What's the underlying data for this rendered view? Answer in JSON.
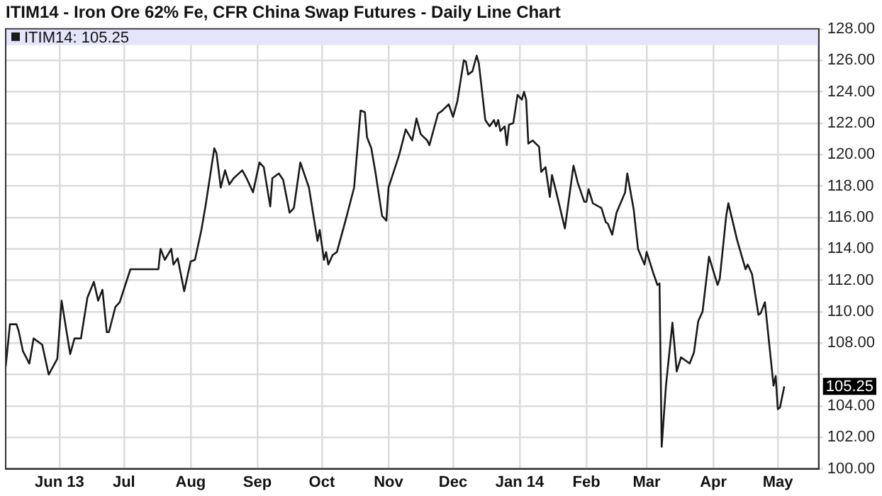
{
  "chart_data": {
    "type": "line",
    "title": "ITIM14 - Iron Ore 62% Fe, CFR China Swap Futures - Daily Line Chart",
    "x": [
      "2013-05-07",
      "2013-05-09",
      "2013-05-12",
      "2013-05-13",
      "2013-05-15",
      "2013-05-18",
      "2013-05-20",
      "2013-05-24",
      "2013-05-27",
      "2013-05-31",
      "2013-06-02",
      "2013-06-06",
      "2013-06-08",
      "2013-06-11",
      "2013-06-14",
      "2013-06-17",
      "2013-06-19",
      "2013-06-21",
      "2013-06-23",
      "2013-06-24",
      "2013-06-27",
      "2013-06-29",
      "2013-07-04",
      "2013-07-17",
      "2013-07-18",
      "2013-07-20",
      "2013-07-23",
      "2013-07-24",
      "2013-07-26",
      "2013-07-29",
      "2013-08-01",
      "2013-08-03",
      "2013-08-06",
      "2013-08-08",
      "2013-08-12",
      "2013-08-13",
      "2013-08-15",
      "2013-08-17",
      "2013-08-19",
      "2013-08-21",
      "2013-08-25",
      "2013-08-27",
      "2013-08-30",
      "2013-09-02",
      "2013-09-04",
      "2013-09-07",
      "2013-09-08",
      "2013-09-11",
      "2013-09-13",
      "2013-09-16",
      "2013-09-18",
      "2013-09-21",
      "2013-09-25",
      "2013-09-29",
      "2013-09-30",
      "2013-10-02",
      "2013-10-03",
      "2013-10-04",
      "2013-10-06",
      "2013-10-08",
      "2013-10-12",
      "2013-10-16",
      "2013-10-19",
      "2013-10-21",
      "2013-10-22",
      "2013-10-24",
      "2013-10-26",
      "2013-10-29",
      "2013-10-31",
      "2013-11-01",
      "2013-11-06",
      "2013-11-09",
      "2013-11-12",
      "2013-11-14",
      "2013-11-16",
      "2013-11-19",
      "2013-11-20",
      "2013-11-24",
      "2013-11-26",
      "2013-11-29",
      "2013-12-01",
      "2013-12-03",
      "2013-12-06",
      "2013-12-07",
      "2013-12-08",
      "2013-12-10",
      "2013-12-12",
      "2013-12-13",
      "2013-12-16",
      "2013-12-18",
      "2013-12-20",
      "2013-12-21",
      "2013-12-22",
      "2013-12-23",
      "2013-12-25",
      "2013-12-26",
      "2013-12-27",
      "2013-12-29",
      "2013-12-31",
      "2014-01-02",
      "2014-01-03",
      "2014-01-04",
      "2014-01-05",
      "2014-01-07",
      "2014-01-10",
      "2014-01-11",
      "2014-01-13",
      "2014-01-15",
      "2014-01-16",
      "2014-01-18",
      "2014-01-22",
      "2014-01-26",
      "2014-01-28",
      "2014-01-31",
      "2014-02-01",
      "2014-02-02",
      "2014-02-04",
      "2014-02-08",
      "2014-02-10",
      "2014-02-11",
      "2014-02-13",
      "2014-02-15",
      "2014-02-19",
      "2014-02-20",
      "2014-02-23",
      "2014-02-25",
      "2014-02-28",
      "2014-03-01",
      "2014-03-04",
      "2014-03-06",
      "2014-03-07",
      "2014-03-08",
      "2014-03-10",
      "2014-03-13",
      "2014-03-15",
      "2014-03-17",
      "2014-03-21",
      "2014-03-23",
      "2014-03-25",
      "2014-03-27",
      "2014-03-30",
      "2014-04-03",
      "2014-04-04",
      "2014-04-07",
      "2014-04-08",
      "2014-04-12",
      "2014-04-16",
      "2014-04-17",
      "2014-04-19",
      "2014-04-22",
      "2014-04-23",
      "2014-04-25",
      "2014-04-29",
      "2014-04-30",
      "2014-05-01",
      "2014-05-02",
      "2014-05-04"
    ],
    "series": [
      {
        "name": "ITIM14: 105.25",
        "color": "#1a1a1a",
        "values": [
          106.5,
          109.2,
          109.2,
          108.8,
          107.5,
          106.7,
          108.3,
          107.9,
          106.0,
          107.0,
          110.7,
          107.3,
          108.3,
          108.3,
          110.9,
          111.9,
          110.7,
          111.4,
          108.7,
          108.7,
          110.3,
          110.6,
          112.7,
          112.7,
          114.0,
          113.3,
          114.0,
          113.0,
          113.4,
          111.3,
          113.2,
          113.3,
          115.2,
          116.8,
          120.4,
          120.1,
          117.9,
          119.0,
          118.1,
          118.5,
          119.0,
          118.5,
          117.6,
          119.5,
          119.2,
          116.7,
          118.5,
          118.8,
          118.4,
          116.3,
          116.6,
          119.5,
          117.9,
          114.5,
          115.2,
          113.3,
          113.8,
          113.0,
          113.6,
          113.8,
          115.8,
          117.9,
          122.8,
          122.7,
          121.1,
          120.4,
          118.8,
          116.1,
          115.8,
          117.9,
          120.0,
          121.6,
          120.9,
          122.3,
          121.3,
          120.9,
          120.6,
          122.6,
          122.8,
          123.2,
          122.4,
          123.4,
          126.0,
          125.9,
          125.1,
          125.3,
          126.3,
          125.8,
          122.2,
          121.8,
          122.2,
          121.8,
          122.2,
          121.5,
          121.8,
          120.6,
          121.9,
          122.0,
          123.8,
          123.5,
          124.0,
          123.5,
          120.7,
          120.9,
          120.5,
          118.9,
          119.2,
          117.3,
          118.7,
          117.6,
          115.3,
          119.3,
          118.2,
          117.0,
          117.0,
          117.8,
          116.9,
          116.6,
          115.7,
          115.6,
          114.9,
          116.3,
          117.6,
          118.8,
          116.5,
          114.0,
          113.0,
          113.8,
          112.5,
          111.7,
          111.8,
          101.4,
          105.3,
          109.3,
          106.2,
          107.1,
          106.7,
          107.4,
          109.4,
          110.0,
          113.5,
          111.7,
          112.1,
          116.1,
          116.9,
          114.6,
          112.7,
          113.0,
          112.4,
          109.8,
          109.9,
          110.6,
          105.3,
          105.9,
          103.8,
          103.9,
          105.25
        ]
      }
    ],
    "xlim": [
      "2013-05-07",
      "2014-05-20"
    ],
    "xticks": [
      {
        "value": "2013-06-01",
        "label": "Jun 13"
      },
      {
        "value": "2013-07-01",
        "label": "Jul"
      },
      {
        "value": "2013-08-01",
        "label": "Aug"
      },
      {
        "value": "2013-09-01",
        "label": "Sep"
      },
      {
        "value": "2013-10-01",
        "label": "Oct"
      },
      {
        "value": "2013-11-01",
        "label": "Nov"
      },
      {
        "value": "2013-12-01",
        "label": "Dec"
      },
      {
        "value": "2014-01-01",
        "label": "Jan 14"
      },
      {
        "value": "2014-02-01",
        "label": "Feb"
      },
      {
        "value": "2014-03-01",
        "label": "Mar"
      },
      {
        "value": "2014-04-01",
        "label": "Apr"
      },
      {
        "value": "2014-05-01",
        "label": "May"
      }
    ],
    "ylim": [
      100,
      128
    ],
    "yticks": [
      {
        "value": 100,
        "label": "100.00"
      },
      {
        "value": 102,
        "label": "102.00"
      },
      {
        "value": 104,
        "label": "104.00"
      },
      {
        "value": 106,
        "label": null
      },
      {
        "value": 108,
        "label": "108.00"
      },
      {
        "value": 110,
        "label": "110.00"
      },
      {
        "value": 112,
        "label": "112.00"
      },
      {
        "value": 114,
        "label": "114.00"
      },
      {
        "value": 116,
        "label": "116.00"
      },
      {
        "value": 118,
        "label": "118.00"
      },
      {
        "value": 120,
        "label": "120.00"
      },
      {
        "value": 122,
        "label": "122.00"
      },
      {
        "value": 124,
        "label": "124.00"
      },
      {
        "value": 126,
        "label": "126.00"
      },
      {
        "value": 128,
        "label": "128.00"
      }
    ],
    "annotations": [
      {
        "text": "105.25",
        "y": 105.25
      }
    ],
    "grid": true,
    "legend": "top left",
    "marker": "none",
    "line_style": "solid"
  }
}
